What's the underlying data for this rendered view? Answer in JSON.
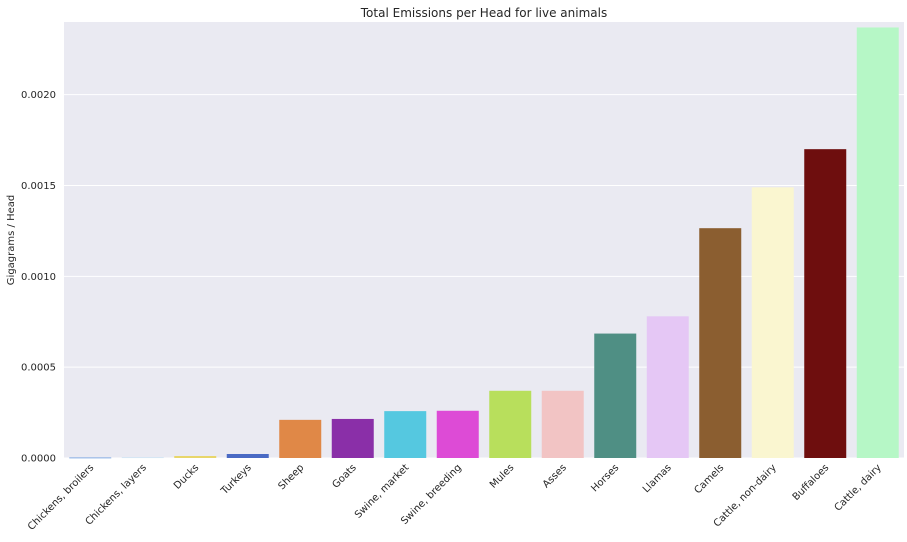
{
  "chart_data": {
    "type": "bar",
    "title": "Total Emissions per Head for live animals",
    "xlabel": "",
    "ylabel": "Gigagrams / Head",
    "ylim": [
      0,
      0.0024
    ],
    "yticks": [
      "0.0000",
      "0.0005",
      "0.0010",
      "0.0015",
      "0.0020"
    ],
    "grid": true,
    "categories": [
      "Chickens, broilers",
      "Chickens, layers",
      "Ducks",
      "Turkeys",
      "Sheep",
      "Goats",
      "Swine, market",
      "Swine, breeding",
      "Mules",
      "Asses",
      "Horses",
      "Llamas",
      "Camels",
      "Cattle, non-dairy",
      "Buffaloes",
      "Cattle, dairy"
    ],
    "values": [
      2e-06,
      3e-06,
      1.1e-05,
      2.2e-05,
      0.00021,
      0.000215,
      0.000258,
      0.00026,
      0.00037,
      0.00037,
      0.000685,
      0.00078,
      0.001265,
      0.00149,
      0.0017,
      0.00237
    ],
    "colors": [
      "#3a7bd5",
      "#c6e3f5",
      "#e8d66b",
      "#4a6ac4",
      "#e08847",
      "#8a2fa8",
      "#55c8e0",
      "#dd4bd6",
      "#b8df5c",
      "#f2c4c4",
      "#4f8f84",
      "#e5c7f5",
      "#8b5e30",
      "#faf6d0",
      "#6e0e0e",
      "#b6f7c6"
    ]
  }
}
